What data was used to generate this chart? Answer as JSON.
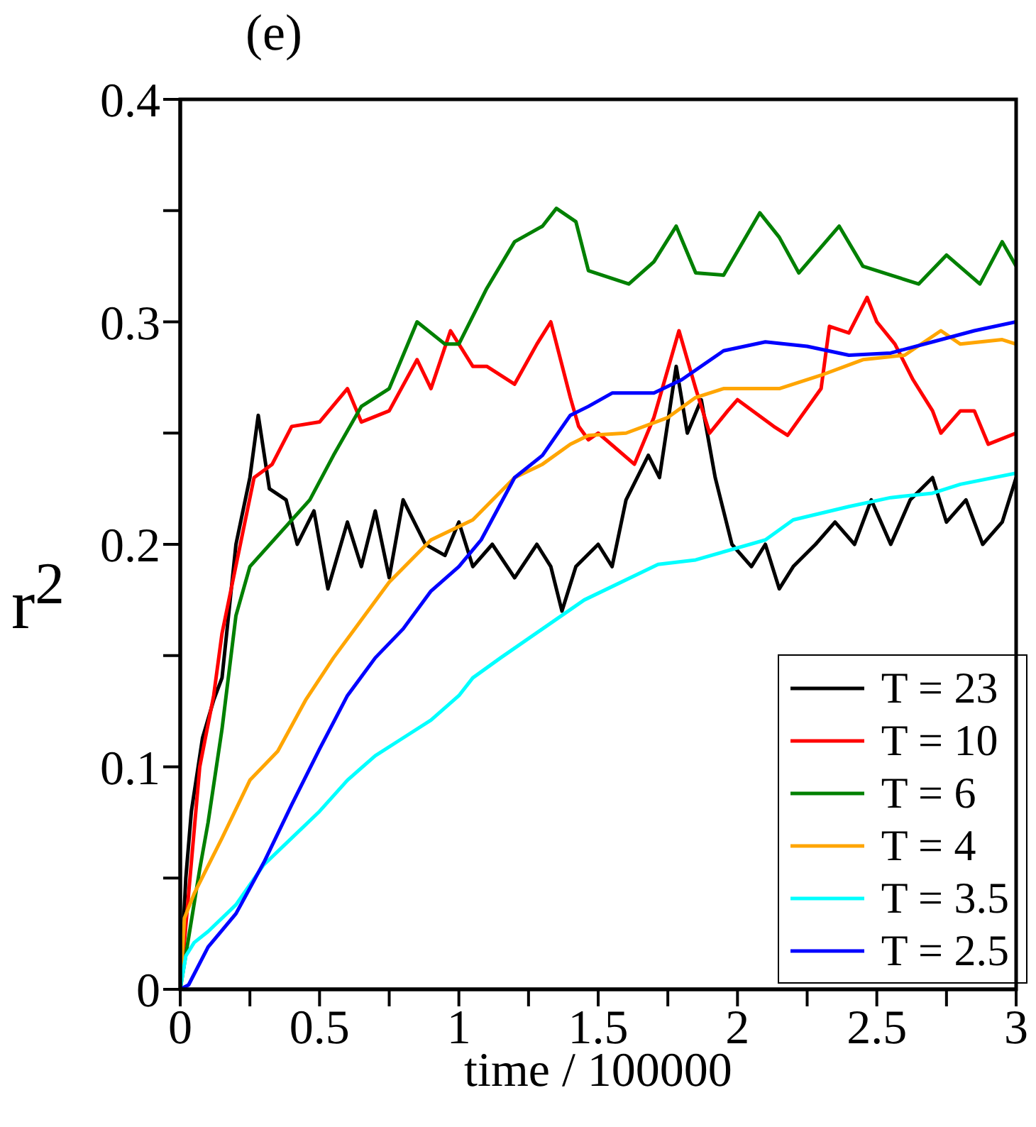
{
  "chart_data": {
    "type": "line",
    "title": "(e)",
    "xlabel": "time / 100000",
    "ylabel": "r$^{2}$",
    "xlim": [
      0,
      3
    ],
    "ylim": [
      0,
      0.4
    ],
    "xticks": [
      0,
      {
        "value": 0.25,
        "label": null
      },
      0.5,
      {
        "value": 0.75,
        "label": null
      },
      1,
      {
        "value": 1.25,
        "label": null
      },
      1.5,
      {
        "value": 1.75,
        "label": null
      },
      2,
      {
        "value": 2.25,
        "label": null
      },
      2.5,
      {
        "value": 2.75,
        "label": null
      },
      3
    ],
    "yticks": [
      0,
      {
        "value": 0.05,
        "label": null
      },
      0.1,
      {
        "value": 0.15,
        "label": null
      },
      0.2,
      {
        "value": 0.25,
        "label": null
      },
      0.3,
      {
        "value": 0.35,
        "label": null
      },
      0.4
    ],
    "grid": false,
    "legend": "bottom right",
    "marker": "none",
    "line_style": "solid",
    "series": [
      {
        "name": "T = 23",
        "color": "#000000",
        "x": [
          0,
          0.02,
          0.04,
          0.08,
          0.12,
          0.15,
          0.2,
          0.25,
          0.28,
          0.32,
          0.38,
          0.42,
          0.48,
          0.53,
          0.6,
          0.65,
          0.7,
          0.75,
          0.8,
          0.88,
          0.95,
          1.0,
          1.05,
          1.12,
          1.2,
          1.28,
          1.33,
          1.37,
          1.42,
          1.5,
          1.55,
          1.6,
          1.68,
          1.72,
          1.78,
          1.82,
          1.87,
          1.92,
          1.98,
          2.05,
          2.1,
          2.15,
          2.2,
          2.28,
          2.35,
          2.42,
          2.48,
          2.55,
          2.62,
          2.7,
          2.75,
          2.82,
          2.88,
          2.95,
          3.0
        ],
        "values": [
          0,
          0.05,
          0.08,
          0.113,
          0.13,
          0.14,
          0.2,
          0.23,
          0.258,
          0.225,
          0.22,
          0.2,
          0.215,
          0.18,
          0.21,
          0.19,
          0.215,
          0.185,
          0.22,
          0.2,
          0.195,
          0.21,
          0.19,
          0.2,
          0.185,
          0.2,
          0.19,
          0.17,
          0.19,
          0.2,
          0.19,
          0.22,
          0.24,
          0.23,
          0.28,
          0.25,
          0.265,
          0.23,
          0.2,
          0.19,
          0.2,
          0.18,
          0.19,
          0.2,
          0.21,
          0.2,
          0.22,
          0.2,
          0.22,
          0.23,
          0.21,
          0.22,
          0.2,
          0.21,
          0.23
        ]
      },
      {
        "name": "T = 10",
        "color": "#ff0000",
        "x": [
          0,
          0.07,
          0.12,
          0.15,
          0.265,
          0.33,
          0.4,
          0.5,
          0.6,
          0.65,
          0.75,
          0.85,
          0.9,
          0.97,
          1.05,
          1.1,
          1.2,
          1.28,
          1.33,
          1.4,
          1.43,
          1.465,
          1.5,
          1.63,
          1.7,
          1.79,
          1.85,
          1.9,
          1.965,
          2.0,
          2.13,
          2.18,
          2.3,
          2.33,
          2.4,
          2.465,
          2.5,
          2.565,
          2.63,
          2.7,
          2.73,
          2.8,
          2.85,
          2.9,
          3.0
        ],
        "values": [
          0,
          0.1,
          0.132,
          0.16,
          0.23,
          0.236,
          0.253,
          0.255,
          0.27,
          0.255,
          0.26,
          0.283,
          0.27,
          0.296,
          0.28,
          0.28,
          0.272,
          0.29,
          0.3,
          0.266,
          0.253,
          0.247,
          0.25,
          0.236,
          0.257,
          0.296,
          0.27,
          0.25,
          0.26,
          0.265,
          0.253,
          0.249,
          0.27,
          0.298,
          0.295,
          0.311,
          0.3,
          0.29,
          0.274,
          0.26,
          0.25,
          0.26,
          0.26,
          0.245,
          0.25
        ]
      },
      {
        "name": "T = 6",
        "color": "#008000",
        "x": [
          0,
          0.07,
          0.1,
          0.15,
          0.2,
          0.25,
          0.465,
          0.55,
          0.65,
          0.75,
          0.85,
          0.95,
          1.0,
          1.1,
          1.2,
          1.3,
          1.35,
          1.42,
          1.465,
          1.61,
          1.7,
          1.78,
          1.85,
          1.95,
          2.08,
          2.15,
          2.22,
          2.365,
          2.45,
          2.55,
          2.65,
          2.75,
          2.87,
          2.95,
          3.0
        ],
        "values": [
          0,
          0.054,
          0.075,
          0.117,
          0.168,
          0.19,
          0.22,
          0.24,
          0.262,
          0.27,
          0.3,
          0.29,
          0.29,
          0.315,
          0.336,
          0.343,
          0.351,
          0.345,
          0.323,
          0.317,
          0.327,
          0.343,
          0.322,
          0.321,
          0.349,
          0.338,
          0.322,
          0.343,
          0.325,
          0.321,
          0.317,
          0.33,
          0.317,
          0.336,
          0.325
        ]
      },
      {
        "name": "T = 4",
        "color": "#ffa500",
        "x": [
          0,
          0.015,
          0.05,
          0.15,
          0.25,
          0.35,
          0.45,
          0.55,
          0.65,
          0.75,
          0.9,
          1.05,
          1.2,
          1.3,
          1.4,
          1.465,
          1.6,
          1.75,
          1.85,
          1.95,
          2.05,
          2.15,
          2.3,
          2.45,
          2.6,
          2.73,
          2.8,
          2.95,
          3.0
        ],
        "values": [
          0,
          0.032,
          0.043,
          0.068,
          0.094,
          0.107,
          0.13,
          0.149,
          0.166,
          0.183,
          0.202,
          0.211,
          0.23,
          0.236,
          0.245,
          0.249,
          0.25,
          0.257,
          0.266,
          0.27,
          0.27,
          0.27,
          0.276,
          0.283,
          0.285,
          0.296,
          0.29,
          0.292,
          0.29
        ]
      },
      {
        "name": "T = 3.5",
        "color": "#00ffff",
        "x": [
          0,
          0.02,
          0.05,
          0.1,
          0.2,
          0.3,
          0.4,
          0.5,
          0.6,
          0.7,
          0.8,
          0.9,
          1.0,
          1.05,
          1.15,
          1.3,
          1.45,
          1.715,
          1.85,
          2.1,
          2.2,
          2.4,
          2.55,
          2.7,
          2.8,
          3.0
        ],
        "values": [
          0,
          0.015,
          0.021,
          0.026,
          0.038,
          0.056,
          0.068,
          0.08,
          0.094,
          0.105,
          0.113,
          0.121,
          0.132,
          0.14,
          0.149,
          0.162,
          0.175,
          0.191,
          0.193,
          0.202,
          0.211,
          0.217,
          0.221,
          0.223,
          0.227,
          0.232
        ]
      },
      {
        "name": "T = 2.5",
        "color": "#0000ff",
        "x": [
          0,
          0.03,
          0.1,
          0.2,
          0.3,
          0.4,
          0.5,
          0.6,
          0.7,
          0.8,
          0.9,
          1.0,
          1.08,
          1.2,
          1.3,
          1.4,
          1.465,
          1.55,
          1.7,
          1.8,
          1.95,
          2.1,
          2.25,
          2.4,
          2.55,
          2.7,
          2.85,
          3.0
        ],
        "values": [
          0,
          0.002,
          0.019,
          0.034,
          0.057,
          0.083,
          0.108,
          0.132,
          0.149,
          0.162,
          0.179,
          0.19,
          0.202,
          0.23,
          0.24,
          0.258,
          0.262,
          0.268,
          0.268,
          0.274,
          0.287,
          0.291,
          0.289,
          0.285,
          0.286,
          0.291,
          0.296,
          0.3
        ]
      }
    ]
  }
}
